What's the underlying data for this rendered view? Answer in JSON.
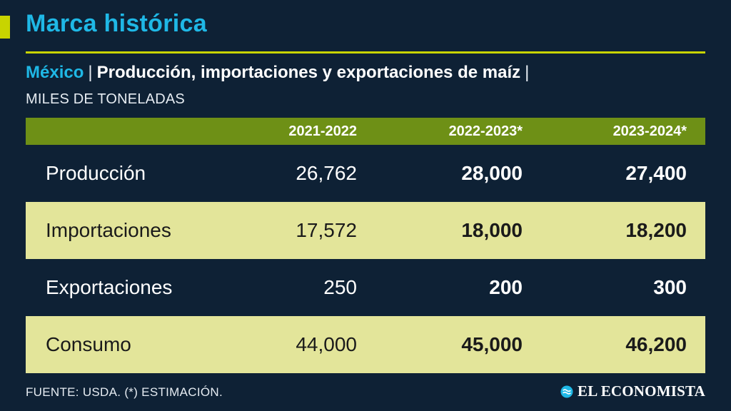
{
  "header": {
    "title": "Marca histórica",
    "subtitle_country": "México",
    "subtitle_separator": "|",
    "subtitle_main": "Producción, importaciones y exportaciones de maíz",
    "subtitle_trailing": "|",
    "units": "MILES DE TONELADAS"
  },
  "colors": {
    "accent": "#c8d400",
    "title": "#1fb8e6",
    "background": "#0e2135",
    "header_row": "#6e9016",
    "shaded_row": "#e3e59a"
  },
  "chart_data": {
    "type": "table",
    "columns": [
      "2021-2022",
      "2022-2023*",
      "2023-2024*"
    ],
    "rows": [
      {
        "label": "Producción",
        "values": [
          "26,762",
          "28,000",
          "27,400"
        ]
      },
      {
        "label": "Importaciones",
        "values": [
          "17,572",
          "18,000",
          "18,200"
        ]
      },
      {
        "label": "Exportaciones",
        "values": [
          "250",
          "200",
          "300"
        ]
      },
      {
        "label": "Consumo",
        "values": [
          "44,000",
          "45,000",
          "46,200"
        ]
      }
    ]
  },
  "footer": {
    "source": "FUENTE: USDA. (*) ESTIMACIÓN.",
    "brand": "EL ECONOMISTA",
    "brand_icon": "el-economista-logo-icon"
  }
}
